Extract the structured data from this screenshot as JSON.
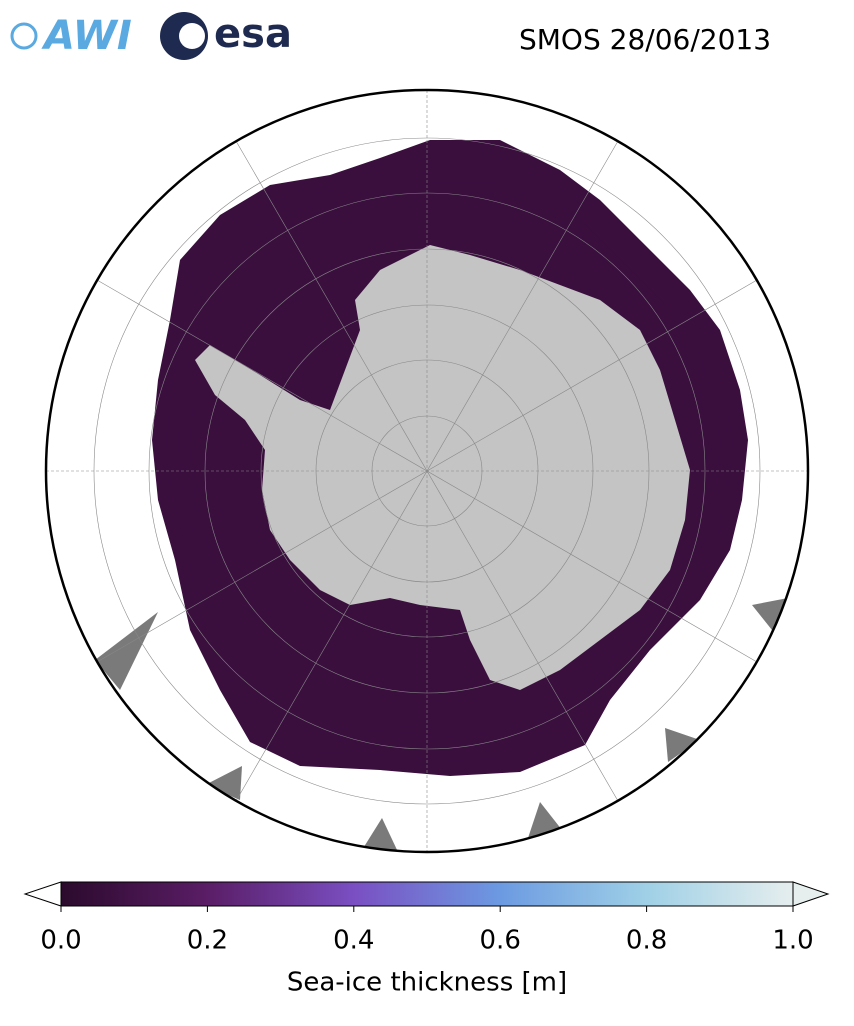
{
  "header": {
    "logos": [
      "AWI",
      "esa"
    ],
    "title": "SMOS 28/06/2013"
  },
  "colorbar": {
    "label": "Sea-ice thickness [m]",
    "lim": [
      0,
      1
    ],
    "ticks": [
      {
        "value": 0,
        "label": "0.0"
      },
      0.2,
      0.4,
      0.6,
      0.8,
      {
        "value": 1,
        "label": "1.0"
      }
    ]
  }
}
